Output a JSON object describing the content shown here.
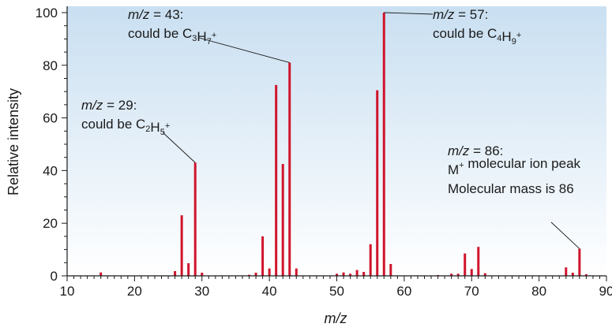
{
  "chart_data": {
    "type": "bar",
    "xlabel": "m/z",
    "ylabel": "Relative intensity",
    "xlim": [
      10,
      90
    ],
    "ylim": [
      0,
      100
    ],
    "xticks": [
      10,
      20,
      30,
      40,
      50,
      60,
      70,
      80,
      90
    ],
    "yticks": [
      0,
      20,
      40,
      60,
      80,
      100
    ],
    "grid": false,
    "bar_color": "#d0142c",
    "background_gradient": [
      "#c9dff1",
      "#ffffff"
    ],
    "points": [
      {
        "x": 15,
        "y": 1.3
      },
      {
        "x": 26,
        "y": 1.8
      },
      {
        "x": 27,
        "y": 23
      },
      {
        "x": 28,
        "y": 4.8
      },
      {
        "x": 29,
        "y": 43
      },
      {
        "x": 30,
        "y": 1.2
      },
      {
        "x": 37,
        "y": 0.4
      },
      {
        "x": 38,
        "y": 1.2
      },
      {
        "x": 39,
        "y": 15
      },
      {
        "x": 40,
        "y": 2.8
      },
      {
        "x": 41,
        "y": 72.5
      },
      {
        "x": 42,
        "y": 42.5
      },
      {
        "x": 43,
        "y": 81
      },
      {
        "x": 44,
        "y": 2.8
      },
      {
        "x": 50,
        "y": 0.8
      },
      {
        "x": 51,
        "y": 1.3
      },
      {
        "x": 52,
        "y": 0.8
      },
      {
        "x": 53,
        "y": 2.2
      },
      {
        "x": 54,
        "y": 1.5
      },
      {
        "x": 55,
        "y": 12
      },
      {
        "x": 56,
        "y": 70.5
      },
      {
        "x": 57,
        "y": 100
      },
      {
        "x": 58,
        "y": 4.5
      },
      {
        "x": 65,
        "y": 0.3
      },
      {
        "x": 67,
        "y": 0.8
      },
      {
        "x": 68,
        "y": 0.8
      },
      {
        "x": 69,
        "y": 8.5
      },
      {
        "x": 70,
        "y": 2.6
      },
      {
        "x": 71,
        "y": 11
      },
      {
        "x": 72,
        "y": 1
      },
      {
        "x": 84,
        "y": 3.2
      },
      {
        "x": 85,
        "y": 1.2
      },
      {
        "x": 86,
        "y": 10.3
      },
      {
        "x": 87,
        "y": 0.6
      }
    ],
    "annotations": [
      {
        "mz": "m/z",
        "eq": " = 43:",
        "line2_prefix": "could be C",
        "formula": [
          [
            "3",
            "sub"
          ],
          [
            "H",
            ""
          ],
          [
            "7",
            "sub"
          ],
          [
            "+",
            "sup"
          ]
        ],
        "target_x": 43,
        "target_y": 81
      },
      {
        "mz": "m/z",
        "eq": " = 57:",
        "line2_prefix": "could be C",
        "formula": [
          [
            "4",
            "sub"
          ],
          [
            "H",
            ""
          ],
          [
            "9",
            "sub"
          ],
          [
            "+",
            "sup"
          ]
        ],
        "target_x": 57,
        "target_y": 100
      },
      {
        "mz": "m/z",
        "eq": " = 29:",
        "line2_prefix": "could be C",
        "formula": [
          [
            "2",
            "sub"
          ],
          [
            "H",
            ""
          ],
          [
            "5",
            "sub"
          ],
          [
            "+",
            "sup"
          ]
        ],
        "target_x": 29,
        "target_y": 43
      },
      {
        "mz": "m/z",
        "eq": " = 86:",
        "line2_prefix": "M",
        "formula": [
          [
            "+",
            "sup"
          ],
          [
            " molecular ion peak",
            ""
          ]
        ],
        "line3": "Molecular mass is 86",
        "target_x": 86,
        "target_y": 10.3
      }
    ]
  }
}
